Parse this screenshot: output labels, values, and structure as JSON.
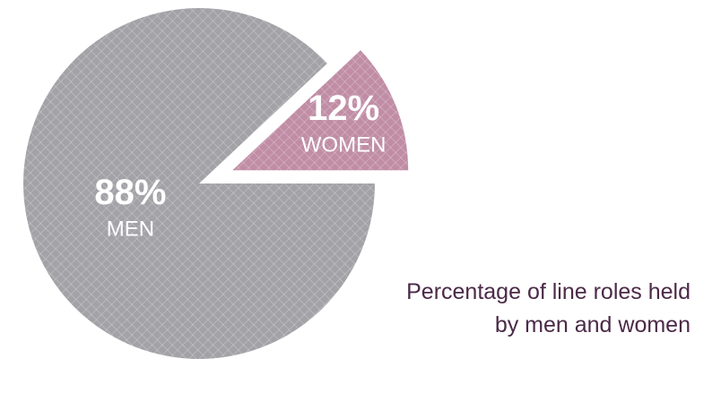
{
  "chart_data": {
    "type": "pie",
    "title": "Percentage of line roles held by men and women",
    "categories": [
      "MEN",
      "WOMEN"
    ],
    "values": [
      88,
      12
    ],
    "value_labels": [
      "88%",
      "12%"
    ],
    "colors": [
      "#a3a2a7",
      "#c08da5"
    ]
  }
}
